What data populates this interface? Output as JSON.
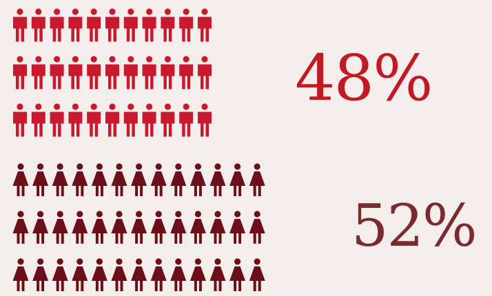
{
  "chart_data": {
    "type": "pictogram",
    "series": [
      {
        "icon": "male-person-icon",
        "color": "#c8192e",
        "value_label": "48%",
        "value": 48,
        "rows": 3,
        "cols": 11
      },
      {
        "icon": "female-person-icon",
        "color": "#6b0f1a",
        "value_label": "52%",
        "value": 52,
        "rows": 3,
        "cols": 13
      }
    ]
  },
  "colors": {
    "background": "#f3eeec",
    "male_text": "#c21a24",
    "female_text": "#7a2a31"
  }
}
